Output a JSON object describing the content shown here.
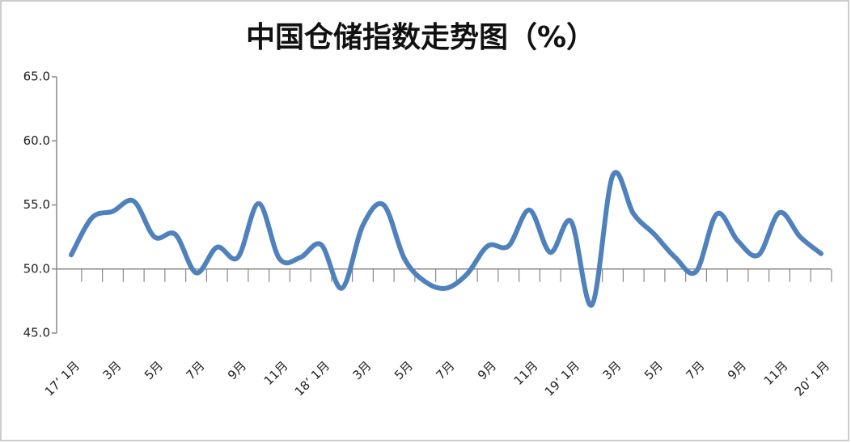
{
  "chart_data": {
    "type": "line",
    "title": "中国仓储指数走势图（%）",
    "categories": [
      "17’ 1月",
      null,
      "3月",
      null,
      "5月",
      null,
      "7月",
      null,
      "9月",
      null,
      "11月",
      null,
      "18’ 1月",
      null,
      "3月",
      null,
      "5月",
      null,
      "7月",
      null,
      "9月",
      null,
      "11月",
      null,
      "19’ 1月",
      null,
      "3月",
      null,
      "5月",
      null,
      "7月",
      null,
      "9月",
      null,
      "11月",
      null,
      "20’ 1月"
    ],
    "series": [
      {
        "color": "#4f81bd",
        "values": [
          51.1,
          54.0,
          54.5,
          55.3,
          52.5,
          52.7,
          49.7,
          51.7,
          50.9,
          55.1,
          50.8,
          50.9,
          51.9,
          48.5,
          53.4,
          55.0,
          50.8,
          49.0,
          48.5,
          49.6,
          51.8,
          51.8,
          54.6,
          51.3,
          53.7,
          47.2,
          57.3,
          54.3,
          52.7,
          50.9,
          49.8,
          54.3,
          52.2,
          51.1,
          54.4,
          52.5,
          51.2
        ]
      }
    ],
    "ylim": [
      45,
      65
    ],
    "yticks": [
      {
        "value": 45,
        "label": "45.0"
      },
      {
        "value": 50,
        "label": "50.0"
      },
      {
        "value": 55,
        "label": "55.0"
      },
      {
        "value": 60,
        "label": "60.0"
      },
      {
        "value": 65,
        "label": "65.0"
      }
    ],
    "xaxis_at": 50
  }
}
